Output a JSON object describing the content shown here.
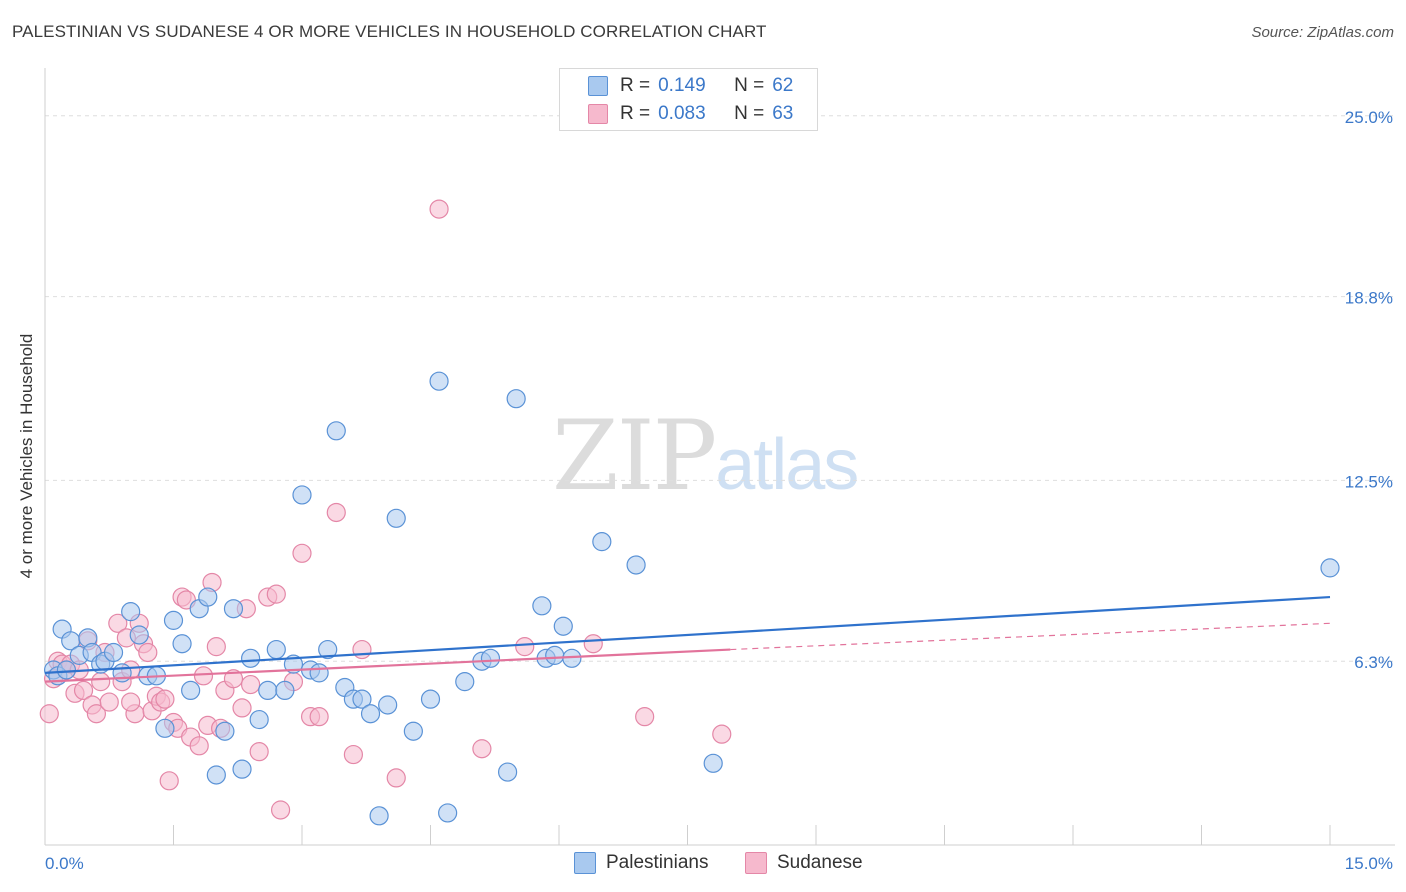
{
  "header": {
    "title": "PALESTINIAN VS SUDANESE 4 OR MORE VEHICLES IN HOUSEHOLD CORRELATION CHART",
    "source": "Source: ZipAtlas.com"
  },
  "watermark": {
    "zip": "ZIP",
    "atlas": "atlas"
  },
  "legend": {
    "series1": {
      "r_label": "R =",
      "r_value": "0.149",
      "n_label": "N =",
      "n_value": "62"
    },
    "series2": {
      "r_label": "R =",
      "r_value": "0.083",
      "n_label": "N =",
      "n_value": "63"
    }
  },
  "colors": {
    "blue_fill": "#a9c9ef",
    "blue_stroke": "#5a92d6",
    "blue_line": "#2f72cc",
    "pink_fill": "#f6b9cd",
    "pink_stroke": "#e487a7",
    "pink_line": "#e2739b",
    "grid": "#dedede",
    "axis_label": "#3b78c9"
  },
  "chart_data": {
    "type": "scatter",
    "title": "PALESTINIAN VS SUDANESE 4 OR MORE VEHICLES IN HOUSEHOLD CORRELATION CHART",
    "xlabel": "",
    "ylabel": "4 or more Vehicles in Household",
    "xlim": [
      0,
      15
    ],
    "ylim": [
      0,
      26.5
    ],
    "x_tick_labels": [
      "0.0%",
      "15.0%"
    ],
    "y_ticks": [
      6.3,
      12.5,
      18.8,
      25.0
    ],
    "y_tick_labels": [
      "6.3%",
      "12.5%",
      "18.8%",
      "25.0%"
    ],
    "grid": true,
    "series": [
      {
        "name": "Palestinians",
        "r": 0.149,
        "n": 62,
        "trend": {
          "x": [
            0,
            15
          ],
          "y": [
            5.9,
            8.5
          ]
        },
        "points": [
          [
            0.1,
            6.0
          ],
          [
            0.15,
            5.8
          ],
          [
            0.2,
            7.4
          ],
          [
            0.25,
            6.0
          ],
          [
            0.3,
            7.0
          ],
          [
            0.4,
            6.5
          ],
          [
            0.5,
            7.1
          ],
          [
            0.55,
            6.6
          ],
          [
            0.65,
            6.2
          ],
          [
            0.7,
            6.3
          ],
          [
            0.8,
            6.6
          ],
          [
            0.9,
            5.9
          ],
          [
            1.0,
            8.0
          ],
          [
            1.1,
            7.2
          ],
          [
            1.2,
            5.8
          ],
          [
            1.3,
            5.8
          ],
          [
            1.4,
            4.0
          ],
          [
            1.5,
            7.7
          ],
          [
            1.6,
            6.9
          ],
          [
            1.7,
            5.3
          ],
          [
            1.8,
            8.1
          ],
          [
            1.9,
            8.5
          ],
          [
            2.0,
            2.4
          ],
          [
            2.1,
            3.9
          ],
          [
            2.2,
            8.1
          ],
          [
            2.3,
            2.6
          ],
          [
            2.4,
            6.4
          ],
          [
            2.5,
            4.3
          ],
          [
            2.6,
            5.3
          ],
          [
            2.7,
            6.7
          ],
          [
            2.8,
            5.3
          ],
          [
            2.9,
            6.2
          ],
          [
            3.0,
            12.0
          ],
          [
            3.1,
            6.0
          ],
          [
            3.2,
            5.9
          ],
          [
            3.3,
            6.7
          ],
          [
            3.4,
            14.2
          ],
          [
            3.5,
            5.4
          ],
          [
            3.6,
            5.0
          ],
          [
            3.7,
            5.0
          ],
          [
            3.8,
            4.5
          ],
          [
            3.9,
            1.0
          ],
          [
            4.0,
            4.8
          ],
          [
            4.1,
            11.2
          ],
          [
            4.3,
            3.9
          ],
          [
            4.5,
            5.0
          ],
          [
            4.6,
            15.9
          ],
          [
            4.7,
            1.1
          ],
          [
            4.9,
            5.6
          ],
          [
            5.1,
            6.3
          ],
          [
            5.2,
            6.4
          ],
          [
            5.4,
            2.5
          ],
          [
            5.5,
            15.3
          ],
          [
            5.8,
            8.2
          ],
          [
            5.85,
            6.4
          ],
          [
            5.95,
            6.5
          ],
          [
            6.05,
            7.5
          ],
          [
            6.15,
            6.4
          ],
          [
            6.5,
            10.4
          ],
          [
            6.9,
            9.6
          ],
          [
            7.8,
            2.8
          ],
          [
            15.0,
            9.5
          ]
        ]
      },
      {
        "name": "Sudanese",
        "r": 0.083,
        "n": 63,
        "trend": {
          "x": [
            0,
            8.0
          ],
          "y": [
            5.6,
            6.7
          ]
        },
        "trend_dashed": {
          "x": [
            8.0,
            15
          ],
          "y": [
            6.7,
            7.6
          ]
        },
        "points": [
          [
            0.05,
            4.5
          ],
          [
            0.1,
            5.7
          ],
          [
            0.15,
            6.3
          ],
          [
            0.2,
            6.2
          ],
          [
            0.25,
            6.0
          ],
          [
            0.3,
            6.2
          ],
          [
            0.35,
            5.2
          ],
          [
            0.4,
            6.0
          ],
          [
            0.45,
            5.3
          ],
          [
            0.5,
            7.0
          ],
          [
            0.55,
            4.8
          ],
          [
            0.6,
            4.5
          ],
          [
            0.65,
            5.6
          ],
          [
            0.7,
            6.6
          ],
          [
            0.75,
            4.9
          ],
          [
            0.85,
            7.6
          ],
          [
            0.9,
            5.6
          ],
          [
            0.95,
            7.1
          ],
          [
            1.0,
            6.0
          ],
          [
            1.05,
            4.5
          ],
          [
            1.1,
            7.6
          ],
          [
            1.15,
            6.9
          ],
          [
            1.2,
            6.6
          ],
          [
            1.25,
            4.6
          ],
          [
            1.3,
            5.1
          ],
          [
            1.35,
            4.9
          ],
          [
            1.4,
            5.0
          ],
          [
            1.45,
            2.2
          ],
          [
            1.5,
            4.2
          ],
          [
            1.55,
            4.0
          ],
          [
            1.6,
            8.5
          ],
          [
            1.65,
            8.4
          ],
          [
            1.7,
            3.7
          ],
          [
            1.8,
            3.4
          ],
          [
            1.85,
            5.8
          ],
          [
            1.9,
            4.1
          ],
          [
            1.95,
            9.0
          ],
          [
            2.0,
            6.8
          ],
          [
            2.05,
            4.0
          ],
          [
            2.1,
            5.3
          ],
          [
            2.2,
            5.7
          ],
          [
            2.3,
            4.7
          ],
          [
            2.35,
            8.1
          ],
          [
            2.4,
            5.5
          ],
          [
            2.5,
            3.2
          ],
          [
            2.6,
            8.5
          ],
          [
            2.7,
            8.6
          ],
          [
            2.75,
            1.2
          ],
          [
            2.9,
            5.6
          ],
          [
            3.0,
            10.0
          ],
          [
            3.1,
            4.4
          ],
          [
            3.2,
            4.4
          ],
          [
            3.4,
            11.4
          ],
          [
            3.6,
            3.1
          ],
          [
            3.7,
            6.7
          ],
          [
            4.1,
            2.3
          ],
          [
            4.6,
            21.8
          ],
          [
            5.1,
            3.3
          ],
          [
            5.6,
            6.8
          ],
          [
            6.4,
            6.9
          ],
          [
            7.0,
            4.4
          ],
          [
            7.9,
            3.8
          ],
          [
            1.0,
            4.9
          ]
        ]
      }
    ],
    "legend_position": "top-center"
  },
  "bottom_legend": {
    "item1": "Palestinians",
    "item2": "Sudanese"
  }
}
